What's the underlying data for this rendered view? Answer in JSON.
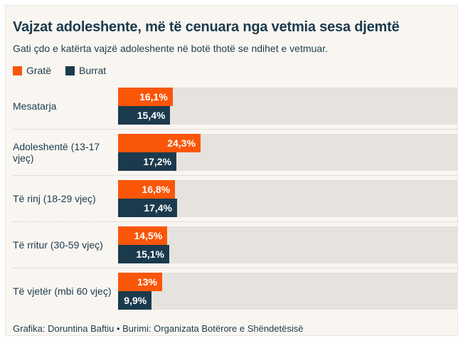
{
  "chart_data": {
    "type": "bar",
    "orientation": "horizontal",
    "title": "Vajzat adoleshente, më të cenuara nga vetmia sesa djemtë",
    "subtitle": "Gati çdo e katërta vajzë adoleshente në botë thotë se ndihet e vetmuar.",
    "categories": [
      "Mesatarja",
      "Adoleshentë (13-17 vjeç)",
      "Të rinj (18-29 vjeç)",
      "Të rritur (30-59 vjeç)",
      "Të vjetër (mbi 60 vjeç)"
    ],
    "series": [
      {
        "name": "Gratë",
        "color": "#fa560a",
        "values": [
          16.1,
          24.3,
          16.8,
          14.5,
          13
        ],
        "labels": [
          "16,1%",
          "24,3%",
          "16,8%",
          "14,5%",
          "13%"
        ]
      },
      {
        "name": "Burrat",
        "color": "#1b3a4d",
        "values": [
          15.4,
          17.2,
          17.4,
          15.1,
          9.9
        ],
        "labels": [
          "15,4%",
          "17,2%",
          "17,4%",
          "15,1%",
          "9,9%"
        ]
      }
    ],
    "xlim": [
      0,
      100
    ],
    "value_suffix": "%",
    "grid": false,
    "legend_position": "top-left",
    "track_color": "#e6e3de",
    "background_color": "#f9f6f1"
  },
  "footer": {
    "credit": "Grafika: Doruntina Baftiu • Burimi: Organizata Botërore e Shëndetësisë"
  }
}
